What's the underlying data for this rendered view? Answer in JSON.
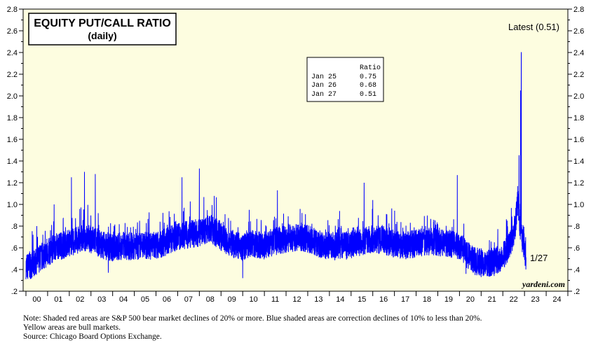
{
  "chart_data": {
    "type": "line",
    "title": "EQUITY PUT/CALL RATIO",
    "subtitle": "(daily)",
    "latest_label": "Latest (0.51)",
    "end_label": "1/27",
    "watermark": "yardeni.com",
    "ylim": [
      0.2,
      2.8
    ],
    "y_ticks": [
      "2.8",
      "2.6",
      "2.4",
      "2.2",
      "2.0",
      "1.8",
      "1.6",
      "1.4",
      "1.2",
      "1.0",
      ".8",
      ".6",
      ".4",
      ".2"
    ],
    "x_ticks": [
      "00",
      "01",
      "02",
      "03",
      "04",
      "05",
      "06",
      "07",
      "08",
      "09",
      "10",
      "11",
      "12",
      "13",
      "14",
      "15",
      "16",
      "17",
      "18",
      "19",
      "20",
      "21",
      "22",
      "23",
      "24"
    ],
    "xlim": [
      2000,
      2025
    ],
    "grid": false,
    "background": "#fdfde0",
    "series": [
      {
        "color": "#0000ff",
        "x": [
          2000.0,
          2000.3,
          2000.6,
          2001.0,
          2001.3,
          2001.6,
          2002.0,
          2002.3,
          2002.6,
          2003.0,
          2003.3,
          2003.6,
          2004.0,
          2004.5,
          2005.0,
          2005.5,
          2006.0,
          2006.5,
          2007.0,
          2007.5,
          2008.0,
          2008.5,
          2009.0,
          2009.5,
          2010.0,
          2010.5,
          2011.0,
          2011.5,
          2012.0,
          2012.5,
          2013.0,
          2013.5,
          2014.0,
          2014.5,
          2015.0,
          2015.5,
          2016.0,
          2016.5,
          2017.0,
          2017.5,
          2018.0,
          2018.5,
          2019.0,
          2019.5,
          2020.0,
          2020.3,
          2020.6,
          2021.0,
          2021.5,
          2022.0,
          2022.3,
          2022.5,
          2022.6,
          2022.7,
          2022.8,
          2022.9,
          2023.0,
          2023.07
        ],
        "values": [
          0.42,
          0.45,
          0.5,
          0.55,
          0.6,
          0.62,
          0.64,
          0.66,
          0.7,
          0.68,
          0.65,
          0.62,
          0.6,
          0.62,
          0.61,
          0.62,
          0.62,
          0.66,
          0.7,
          0.72,
          0.74,
          0.78,
          0.7,
          0.64,
          0.6,
          0.64,
          0.62,
          0.66,
          0.68,
          0.7,
          0.68,
          0.64,
          0.62,
          0.61,
          0.63,
          0.66,
          0.68,
          0.67,
          0.63,
          0.62,
          0.64,
          0.66,
          0.65,
          0.64,
          0.62,
          0.55,
          0.48,
          0.47,
          0.46,
          0.52,
          0.62,
          0.72,
          0.85,
          1.05,
          0.78,
          0.66,
          0.6,
          0.51
        ],
        "spikes": [
          {
            "x": 2000.5,
            "y": 0.8
          },
          {
            "x": 2001.3,
            "y": 1.0
          },
          {
            "x": 2002.1,
            "y": 1.25
          },
          {
            "x": 2002.7,
            "y": 1.3
          },
          {
            "x": 2003.2,
            "y": 1.28
          },
          {
            "x": 2007.2,
            "y": 1.25
          },
          {
            "x": 2008.0,
            "y": 1.33
          },
          {
            "x": 2010.3,
            "y": 0.95
          },
          {
            "x": 2011.6,
            "y": 1.13
          },
          {
            "x": 2015.6,
            "y": 1.2
          },
          {
            "x": 2016.0,
            "y": 1.04
          },
          {
            "x": 2019.9,
            "y": 1.27
          },
          {
            "x": 2022.2,
            "y": 0.85
          },
          {
            "x": 2022.75,
            "y": 1.45
          },
          {
            "x": 2022.82,
            "y": 2.05
          },
          {
            "x": 2022.85,
            "y": 2.4
          }
        ],
        "lows": [
          {
            "x": 2000.0,
            "y": 0.31
          },
          {
            "x": 2003.8,
            "y": 0.37
          },
          {
            "x": 2010.0,
            "y": 0.32
          },
          {
            "x": 2020.3,
            "y": 0.36
          },
          {
            "x": 2021.0,
            "y": 0.33
          },
          {
            "x": 2021.6,
            "y": 0.34
          }
        ]
      }
    ],
    "inset_table": {
      "header": "Ratio",
      "rows": [
        {
          "date": "Jan 25",
          "value": "0.75"
        },
        {
          "date": "Jan 26",
          "value": "0.68"
        },
        {
          "date": "Jan 27",
          "value": "0.51"
        }
      ]
    }
  },
  "notes": {
    "line1": "Note: Shaded red areas are S&P 500 bear market declines of 20% or more.  Blue shaded areas are correction declines of 10% to less than 20%.",
    "line2": "Yellow areas are bull markets.",
    "line3": "Source: Chicago Board Options Exchange."
  }
}
